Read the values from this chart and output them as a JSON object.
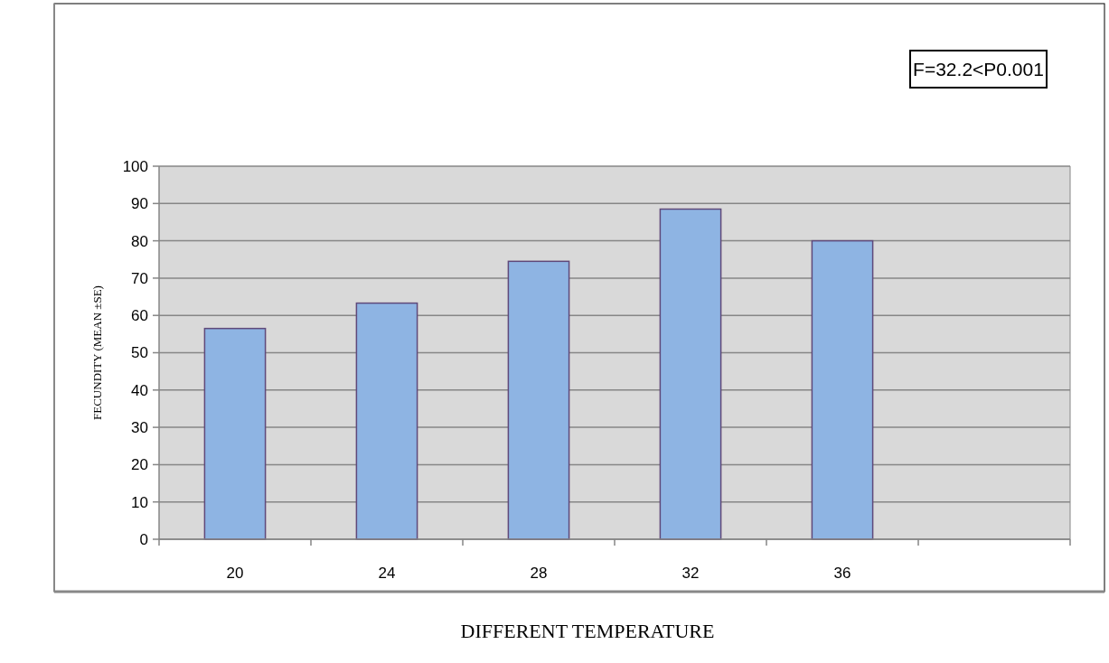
{
  "chart_data": {
    "type": "bar",
    "xlabel": "DIFFERENT TEMPERATURE",
    "ylabel": "FECUNDITY (MEAN ±SE)",
    "categories": [
      "20",
      "24",
      "28",
      "32",
      "36",
      null
    ],
    "values": [
      56.5,
      63.3,
      74.5,
      88.5,
      80,
      null
    ],
    "color": "#8eb4e3",
    "ylim": [
      0,
      100
    ],
    "yticks": [
      0,
      10,
      20,
      30,
      40,
      50,
      60,
      70,
      80,
      90,
      100
    ],
    "grid": "y",
    "annotations": [
      "F=32.2<P0.001"
    ]
  }
}
